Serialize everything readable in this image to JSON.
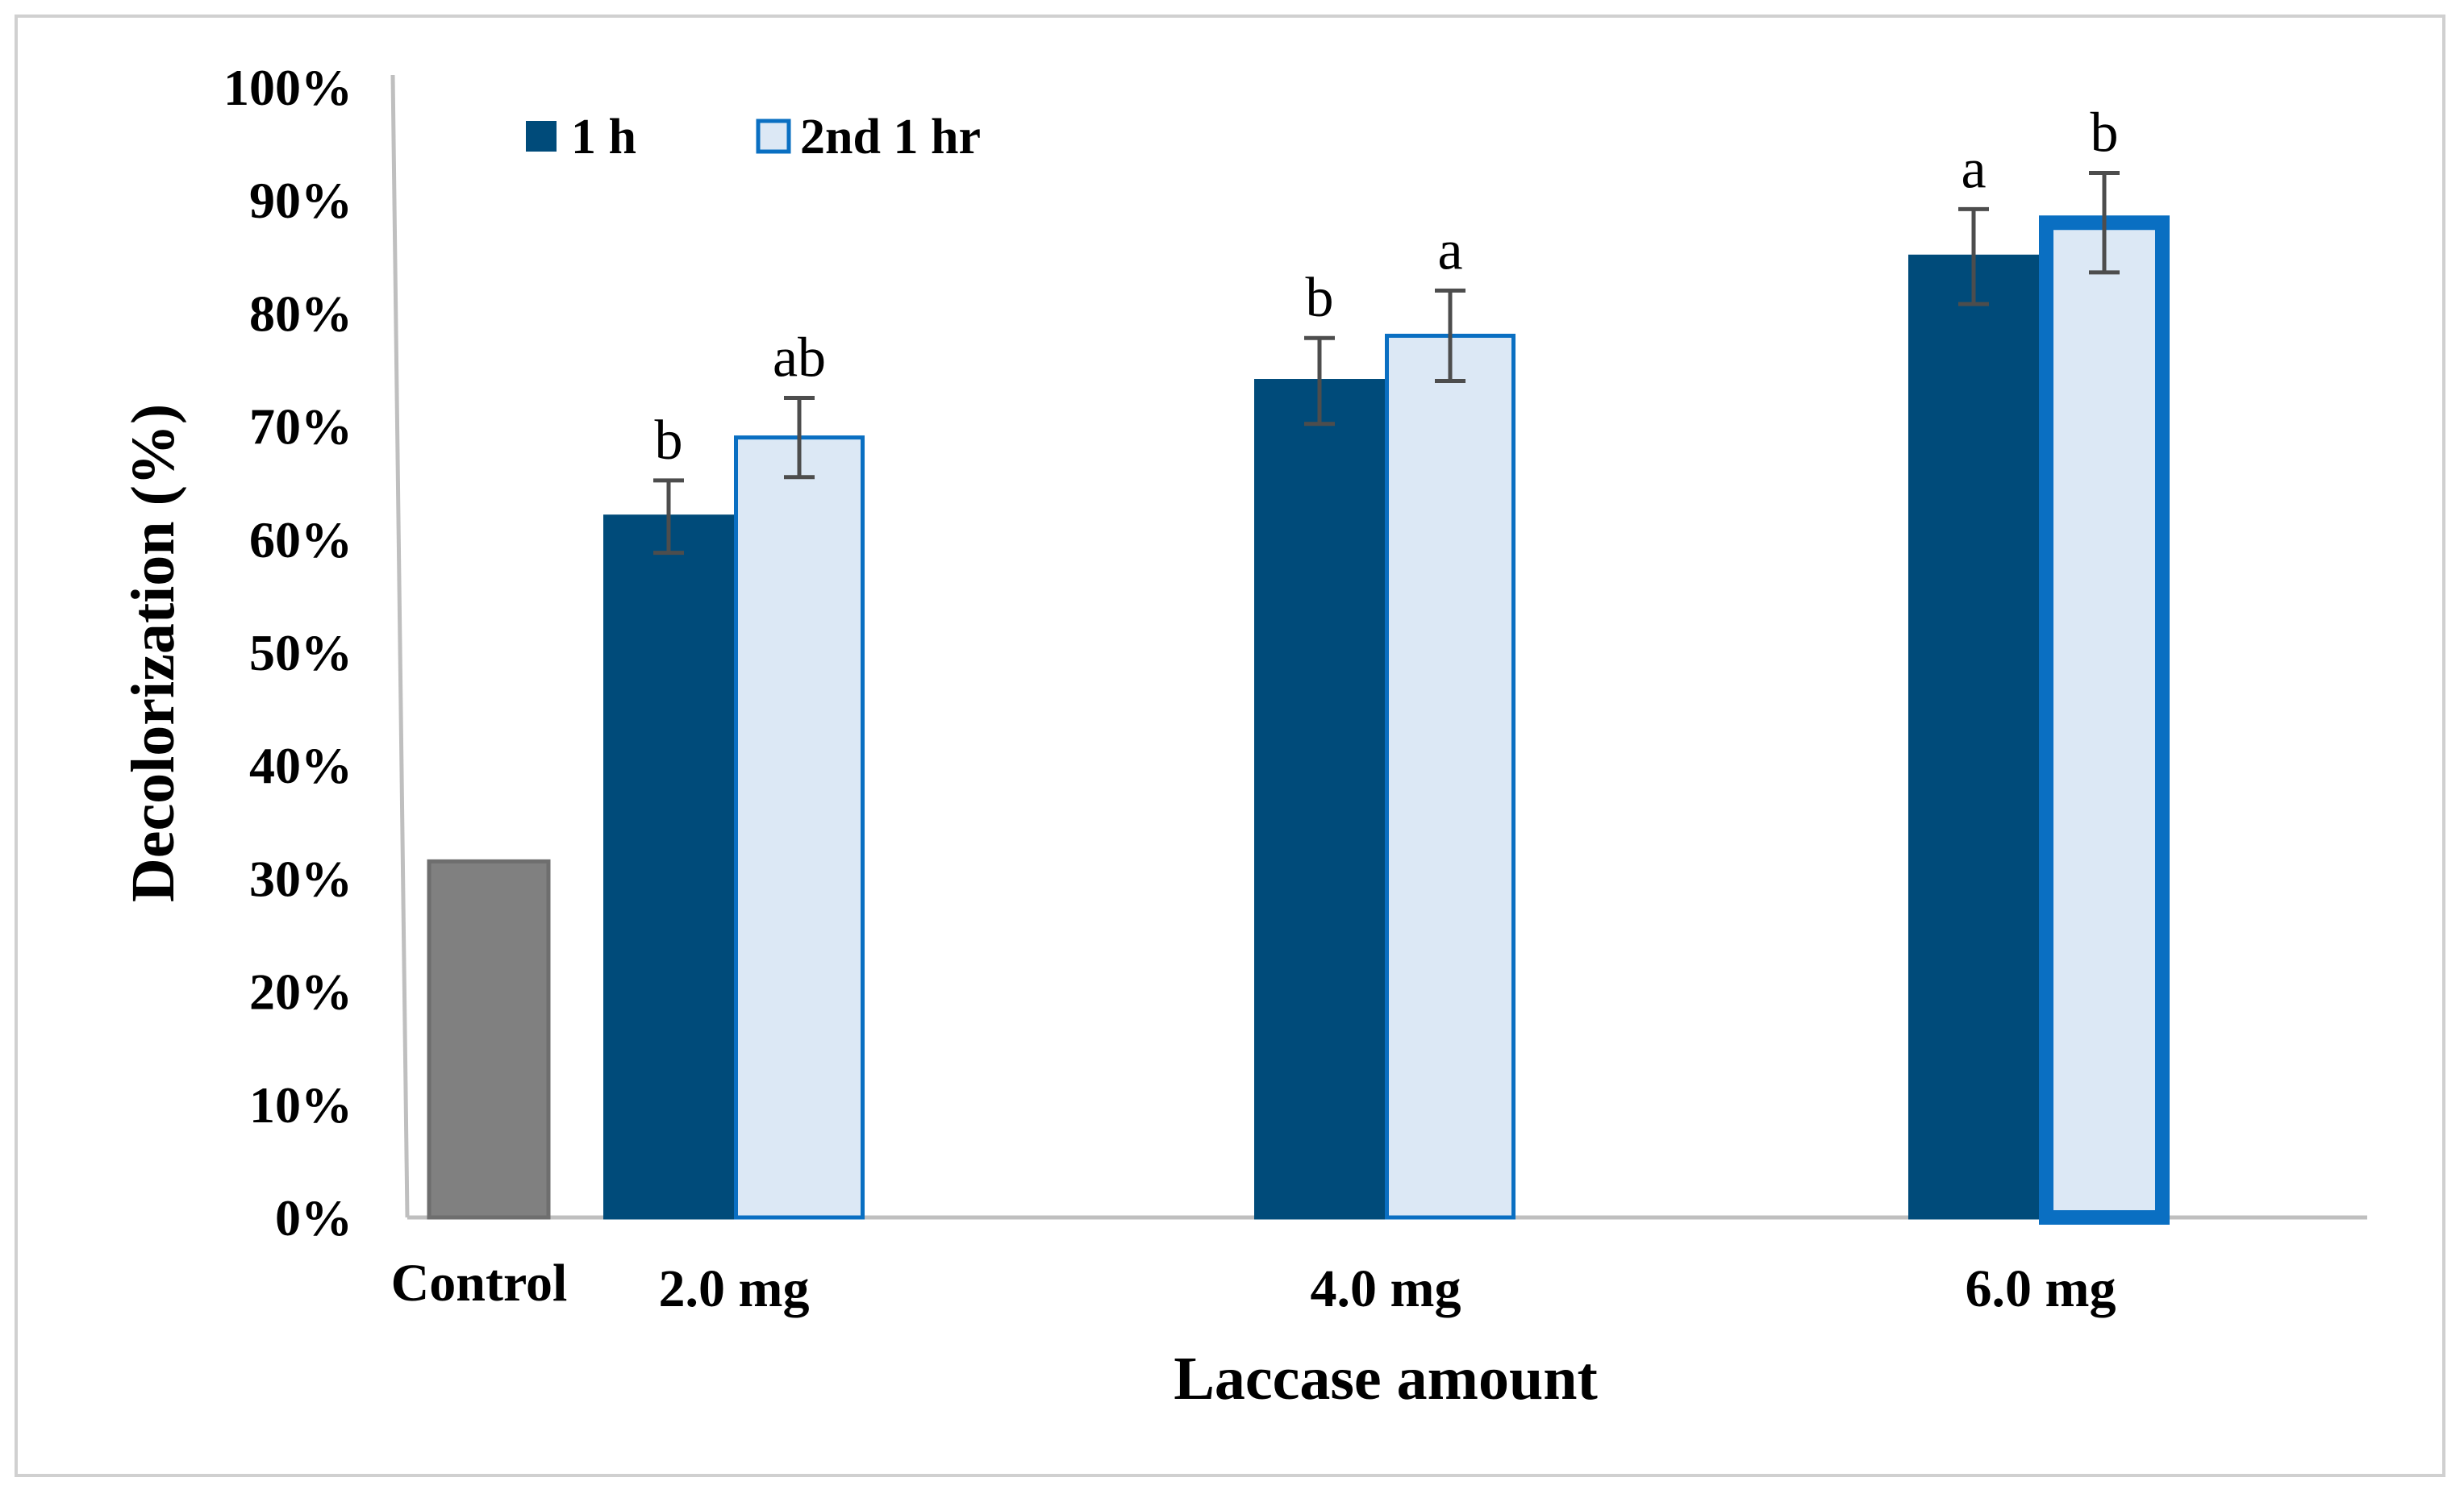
{
  "chart_data": {
    "type": "bar",
    "xlabel": "Laccase amount",
    "ylabel": "Decolorization (%)",
    "ylim": [
      0,
      100
    ],
    "yticks": [
      0,
      10,
      20,
      30,
      40,
      50,
      60,
      70,
      80,
      90,
      100
    ],
    "ytick_labels": [
      "0%",
      "10%",
      "20%",
      "30%",
      "40%",
      "50%",
      "60%",
      "70%",
      "80%",
      "90%",
      "100%"
    ],
    "grid": false,
    "legend_position": "top-left",
    "control": {
      "label": "Control",
      "value": 31.5,
      "color": "#808080",
      "border": "#6e6e6e"
    },
    "categories": [
      "2.0 mg",
      "4.0 mg",
      "6.0 mg"
    ],
    "series": [
      {
        "name": "1 h",
        "values": [
          62,
          74,
          85
        ],
        "errors": [
          3.2,
          3.8,
          4.2
        ],
        "labels": [
          "b",
          "b",
          "a"
        ],
        "fill": "#004b7a",
        "border": "#004b7a"
      },
      {
        "name": "2nd 1 hr",
        "values": [
          69,
          78,
          88
        ],
        "errors": [
          3.5,
          4.0,
          4.4
        ],
        "labels": [
          "ab",
          "a",
          "b"
        ],
        "fill": "#dce8f5",
        "border": "#0a6fc2"
      }
    ]
  }
}
